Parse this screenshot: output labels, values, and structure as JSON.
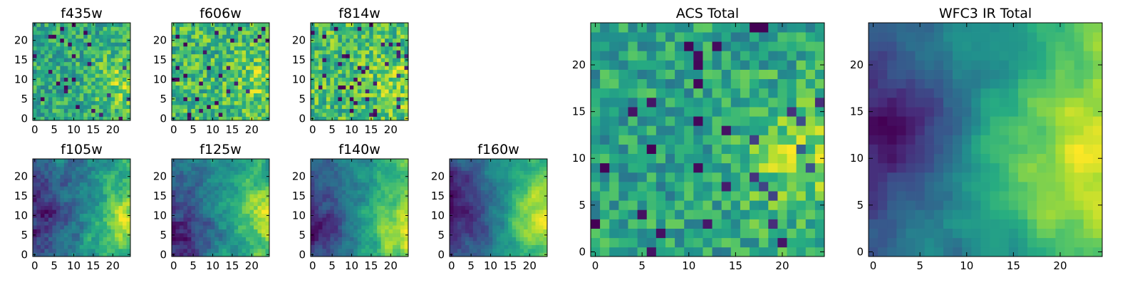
{
  "figure": {
    "panels": [
      {
        "id": "f435w",
        "title": "f435w",
        "small": true
      },
      {
        "id": "f606w",
        "title": "f606w",
        "small": true
      },
      {
        "id": "f814w",
        "title": "f814w",
        "small": true
      },
      {
        "id": "f105w",
        "title": "f105w",
        "small": true
      },
      {
        "id": "f125w",
        "title": "f125w",
        "small": true
      },
      {
        "id": "f140w",
        "title": "f140w",
        "small": true
      },
      {
        "id": "f160w",
        "title": "f160w",
        "small": true
      },
      {
        "id": "acs-total",
        "title": "ACS Total",
        "small": false
      },
      {
        "id": "wfc3-ir-total",
        "title": "WFC3 IR Total",
        "small": false
      }
    ]
  },
  "chart_data": [
    {
      "type": "heatmap",
      "title": "f435w",
      "grid_size": [
        25,
        25
      ],
      "x_ticks": [
        0,
        5,
        10,
        15,
        20
      ],
      "y_ticks": [
        0,
        5,
        10,
        15,
        20
      ],
      "xlim": [
        -0.5,
        24.5
      ],
      "ylim": [
        -0.5,
        24.5
      ],
      "colormap": "viridis",
      "pattern": "noise",
      "seed": 11,
      "dark_fraction": 0.03,
      "bright_region": {
        "center": [
          22,
          9
        ],
        "radius": 5,
        "strength": 0.25
      }
    },
    {
      "type": "heatmap",
      "title": "f606w",
      "grid_size": [
        25,
        25
      ],
      "x_ticks": [
        0,
        5,
        10,
        15,
        20
      ],
      "y_ticks": [
        0,
        5,
        10,
        15,
        20
      ],
      "xlim": [
        -0.5,
        24.5
      ],
      "ylim": [
        -0.5,
        24.5
      ],
      "colormap": "viridis",
      "pattern": "noise",
      "seed": 23,
      "dark_fraction": 0.04,
      "bright_region": {
        "center": [
          22,
          9
        ],
        "radius": 5,
        "strength": 0.15
      }
    },
    {
      "type": "heatmap",
      "title": "f814w",
      "grid_size": [
        25,
        25
      ],
      "x_ticks": [
        0,
        5,
        10,
        15,
        20
      ],
      "y_ticks": [
        0,
        5,
        10,
        15,
        20
      ],
      "xlim": [
        -0.5,
        24.5
      ],
      "ylim": [
        -0.5,
        24.5
      ],
      "colormap": "viridis",
      "pattern": "noise",
      "seed": 37,
      "dark_fraction": 0.06,
      "bright_region": {
        "center": [
          22,
          9
        ],
        "radius": 5,
        "strength": 0.15
      }
    },
    {
      "type": "heatmap",
      "title": "f105w",
      "grid_size": [
        25,
        25
      ],
      "x_ticks": [
        0,
        5,
        10,
        15,
        20
      ],
      "y_ticks": [
        0,
        5,
        10,
        15,
        20
      ],
      "xlim": [
        -0.5,
        24.5
      ],
      "ylim": [
        -0.5,
        24.5
      ],
      "colormap": "viridis",
      "pattern": "smooth",
      "seed": 41,
      "noise": 0.22,
      "gradient": 0.45,
      "bright_region": {
        "center": [
          23,
          8
        ],
        "radius": 6,
        "strength": 0.35
      },
      "dark_region": {
        "center": [
          3,
          12
        ],
        "radius": 7,
        "strength": 0.3
      }
    },
    {
      "type": "heatmap",
      "title": "f125w",
      "grid_size": [
        25,
        25
      ],
      "x_ticks": [
        0,
        5,
        10,
        15,
        20
      ],
      "y_ticks": [
        0,
        5,
        10,
        15,
        20
      ],
      "xlim": [
        -0.5,
        24.5
      ],
      "ylim": [
        -0.5,
        24.5
      ],
      "colormap": "viridis",
      "pattern": "smooth",
      "seed": 53,
      "noise": 0.18,
      "gradient": 0.45,
      "bright_region": {
        "center": [
          23,
          10
        ],
        "radius": 6,
        "strength": 0.35
      },
      "dark_region": {
        "center": [
          3,
          4
        ],
        "radius": 6,
        "strength": 0.3
      }
    },
    {
      "type": "heatmap",
      "title": "f140w",
      "grid_size": [
        25,
        25
      ],
      "x_ticks": [
        0,
        5,
        10,
        15,
        20
      ],
      "y_ticks": [
        0,
        5,
        10,
        15,
        20
      ],
      "xlim": [
        -0.5,
        24.5
      ],
      "ylim": [
        -0.5,
        24.5
      ],
      "colormap": "viridis",
      "pattern": "smooth",
      "seed": 67,
      "noise": 0.16,
      "gradient": 0.55,
      "bright_region": {
        "center": [
          22,
          6
        ],
        "radius": 6,
        "strength": 0.35
      },
      "dark_region": {
        "center": [
          2,
          8
        ],
        "radius": 7,
        "strength": 0.35
      }
    },
    {
      "type": "heatmap",
      "title": "f160w",
      "grid_size": [
        25,
        25
      ],
      "x_ticks": [
        0,
        5,
        10,
        15,
        20
      ],
      "y_ticks": [
        0,
        5,
        10,
        15,
        20
      ],
      "xlim": [
        -0.5,
        24.5
      ],
      "ylim": [
        -0.5,
        24.5
      ],
      "colormap": "viridis",
      "pattern": "smooth",
      "seed": 79,
      "noise": 0.12,
      "gradient": 0.6,
      "bright_region": {
        "center": [
          23,
          10
        ],
        "radius": 6,
        "strength": 0.4
      },
      "dark_region": {
        "center": [
          2,
          12
        ],
        "radius": 7,
        "strength": 0.4
      }
    },
    {
      "type": "heatmap",
      "title": "ACS Total",
      "grid_size": [
        25,
        25
      ],
      "x_ticks": [
        0,
        5,
        10,
        15,
        20
      ],
      "y_ticks": [
        0,
        5,
        10,
        15,
        20
      ],
      "xlim": [
        -0.5,
        24.5
      ],
      "ylim": [
        -0.5,
        24.5
      ],
      "colormap": "viridis",
      "pattern": "noise",
      "seed": 97,
      "dark_fraction": 0.05,
      "bright_region": {
        "center": [
          22,
          10
        ],
        "radius": 5,
        "strength": 0.3
      }
    },
    {
      "type": "heatmap",
      "title": "WFC3 IR Total",
      "grid_size": [
        25,
        25
      ],
      "x_ticks": [
        0,
        5,
        10,
        15,
        20
      ],
      "y_ticks": [
        0,
        5,
        10,
        15,
        20
      ],
      "xlim": [
        -0.5,
        24.5
      ],
      "ylim": [
        -0.5,
        24.5
      ],
      "colormap": "viridis",
      "pattern": "smooth",
      "seed": 101,
      "noise": 0.08,
      "gradient": 0.6,
      "bright_region": {
        "center": [
          22,
          10
        ],
        "radius": 7,
        "strength": 0.45
      },
      "dark_region": {
        "center": [
          2,
          13
        ],
        "radius": 5,
        "strength": 0.45
      }
    }
  ]
}
